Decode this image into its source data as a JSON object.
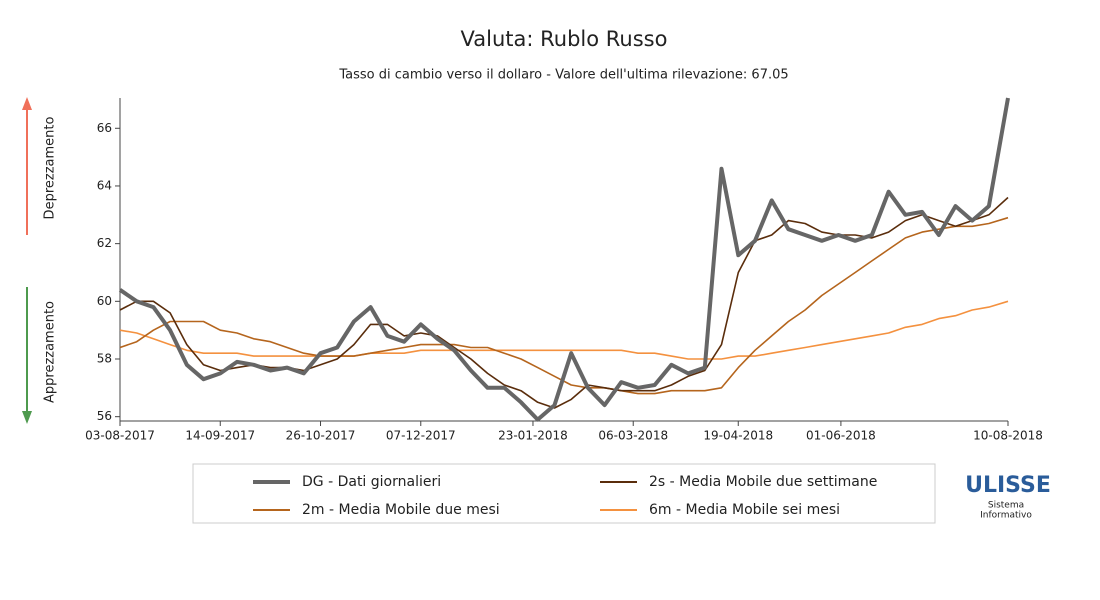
{
  "chart_data": {
    "type": "line",
    "title": "Valuta: Rublo Russo",
    "subtitle": "Tasso di cambio verso il dollaro - Valore dell'ultima rilevazione: 67.05",
    "annotations": [
      "Deprezzamento",
      "Apprezzamento"
    ],
    "logo": {
      "title": "ULISSE",
      "lines": [
        "Sistema",
        "Informativo"
      ]
    },
    "x": [
      "03-08-2017",
      "10-08-2017",
      "17-08-2017",
      "24-08-2017",
      "31-08-2017",
      "07-09-2017",
      "14-09-2017",
      "21-09-2017",
      "28-09-2017",
      "05-10-2017",
      "12-10-2017",
      "19-10-2017",
      "26-10-2017",
      "02-11-2017",
      "09-11-2017",
      "16-11-2017",
      "23-11-2017",
      "30-11-2017",
      "07-12-2017",
      "14-12-2017",
      "21-12-2017",
      "28-12-2017",
      "04-01-2018",
      "11-01-2018",
      "18-01-2018",
      "25-01-2018",
      "01-02-2018",
      "08-02-2018",
      "15-02-2018",
      "22-02-2018",
      "01-03-2018",
      "08-03-2018",
      "15-03-2018",
      "22-03-2018",
      "29-03-2018",
      "05-04-2018",
      "12-04-2018",
      "19-04-2018",
      "26-04-2018",
      "03-05-2018",
      "10-05-2018",
      "17-05-2018",
      "24-05-2018",
      "31-05-2018",
      "07-06-2018",
      "14-06-2018",
      "21-06-2018",
      "28-06-2018",
      "05-07-2018",
      "12-07-2018",
      "19-07-2018",
      "26-07-2018",
      "02-08-2018",
      "10-08-2018"
    ],
    "xlim": [
      "03-08-2017",
      "10-08-2018"
    ],
    "xticks": [
      "03-08-2017",
      "14-09-2017",
      "26-10-2017",
      "07-12-2017",
      "23-01-2018",
      "06-03-2018",
      "19-04-2018",
      "01-06-2018",
      "10-08-2018"
    ],
    "ylim": [
      55.85,
      67.05
    ],
    "yticks": [
      56,
      58,
      60,
      62,
      64,
      66
    ],
    "grid": false,
    "series": [
      {
        "name": "DG - Dati giornalieri",
        "color": "#666666",
        "width": 4,
        "values": [
          60.4,
          60.0,
          59.8,
          59.0,
          57.8,
          57.3,
          57.5,
          57.9,
          57.8,
          57.6,
          57.7,
          57.5,
          58.2,
          58.4,
          59.3,
          59.8,
          58.8,
          58.6,
          59.2,
          58.7,
          58.3,
          57.6,
          57.0,
          57.0,
          56.5,
          55.9,
          56.4,
          58.2,
          57.0,
          56.4,
          57.2,
          57.0,
          57.1,
          57.8,
          57.5,
          57.7,
          64.6,
          61.6,
          62.1,
          63.5,
          62.5,
          62.3,
          62.1,
          62.3,
          62.1,
          62.3,
          63.8,
          63.0,
          63.1,
          62.3,
          63.3,
          62.8,
          63.3,
          67.05
        ]
      },
      {
        "name": "2s - Media Mobile due settimane",
        "color": "#5a2d0c",
        "width": 1.6,
        "values": [
          59.7,
          60.0,
          60.0,
          59.6,
          58.5,
          57.8,
          57.6,
          57.7,
          57.8,
          57.7,
          57.7,
          57.6,
          57.8,
          58.0,
          58.5,
          59.2,
          59.2,
          58.8,
          58.9,
          58.8,
          58.4,
          58.0,
          57.5,
          57.1,
          56.9,
          56.5,
          56.3,
          56.6,
          57.1,
          57.0,
          56.9,
          56.9,
          56.9,
          57.1,
          57.4,
          57.6,
          58.5,
          61.0,
          62.1,
          62.3,
          62.8,
          62.7,
          62.4,
          62.3,
          62.3,
          62.2,
          62.4,
          62.8,
          63.0,
          62.8,
          62.6,
          62.8,
          63.0,
          63.6
        ]
      },
      {
        "name": "2m - Media Mobile due mesi",
        "color": "#b5651d",
        "width": 1.6,
        "values": [
          58.4,
          58.6,
          59.0,
          59.3,
          59.3,
          59.3,
          59.0,
          58.9,
          58.7,
          58.6,
          58.4,
          58.2,
          58.1,
          58.1,
          58.1,
          58.2,
          58.3,
          58.4,
          58.5,
          58.5,
          58.5,
          58.4,
          58.4,
          58.2,
          58.0,
          57.7,
          57.4,
          57.1,
          57.0,
          57.0,
          56.9,
          56.8,
          56.8,
          56.9,
          56.9,
          56.9,
          57.0,
          57.7,
          58.3,
          58.8,
          59.3,
          59.7,
          60.2,
          60.6,
          61.0,
          61.4,
          61.8,
          62.2,
          62.4,
          62.5,
          62.6,
          62.6,
          62.7,
          62.9
        ]
      },
      {
        "name": "6m - Media Mobile sei mesi",
        "color": "#f4913f",
        "width": 1.6,
        "values": [
          59.0,
          58.9,
          58.7,
          58.5,
          58.3,
          58.2,
          58.2,
          58.2,
          58.1,
          58.1,
          58.1,
          58.1,
          58.1,
          58.1,
          58.1,
          58.2,
          58.2,
          58.2,
          58.3,
          58.3,
          58.3,
          58.3,
          58.3,
          58.3,
          58.3,
          58.3,
          58.3,
          58.3,
          58.3,
          58.3,
          58.3,
          58.2,
          58.2,
          58.1,
          58.0,
          58.0,
          58.0,
          58.1,
          58.1,
          58.2,
          58.3,
          58.4,
          58.5,
          58.6,
          58.7,
          58.8,
          58.9,
          59.1,
          59.2,
          59.4,
          59.5,
          59.7,
          59.8,
          60.0
        ]
      }
    ]
  }
}
